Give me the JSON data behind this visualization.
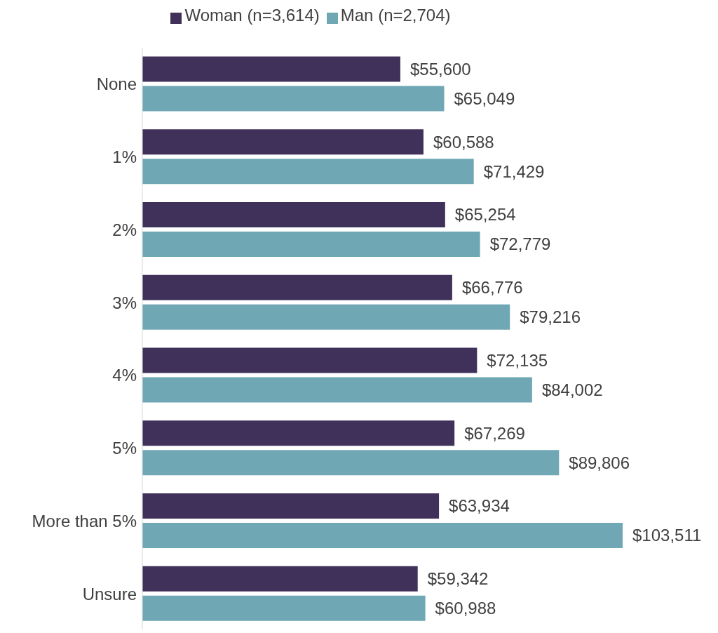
{
  "chart_data": {
    "type": "bar",
    "orientation": "horizontal",
    "categories": [
      "None",
      "1%",
      "2%",
      "3%",
      "4%",
      "5%",
      "More than 5%",
      "Unsure"
    ],
    "series": [
      {
        "name": "Woman (n=3,614)",
        "color": "#3f3159",
        "values": [
          55600,
          60588,
          65254,
          66776,
          72135,
          67269,
          63934,
          59342
        ],
        "value_labels": [
          "$55,600",
          "$60,588",
          "$65,254",
          "$66,776",
          "$72,135",
          "$67,269",
          "$63,934",
          "$59,342"
        ]
      },
      {
        "name": "Man (n=2,704)",
        "color": "#6fa8b4",
        "values": [
          65049,
          71429,
          72779,
          79216,
          84002,
          89806,
          103511,
          60988
        ],
        "value_labels": [
          "$65,049",
          "$71,429",
          "$72,779",
          "$79,216",
          "$84,002",
          "$89,806",
          "$103,511",
          "$60,988"
        ]
      }
    ],
    "legend": "top",
    "grid": false
  }
}
